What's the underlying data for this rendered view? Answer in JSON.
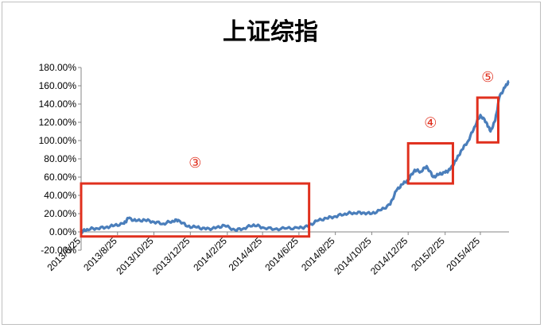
{
  "chart_data": {
    "type": "line",
    "title": "上证综指",
    "xlabel": "",
    "ylabel": "",
    "ylim": [
      -0.2,
      1.8
    ],
    "y_ticks": [
      "-20.00%",
      "0.00%",
      "20.00%",
      "40.00%",
      "60.00%",
      "80.00%",
      "100.00%",
      "120.00%",
      "140.00%",
      "160.00%",
      "180.00%"
    ],
    "y_tick_values": [
      -0.2,
      0,
      0.2,
      0.4,
      0.6,
      0.8,
      1.0,
      1.2,
      1.4,
      1.6,
      1.8
    ],
    "x_ticks": [
      "2013/6/25",
      "2013/8/25",
      "2013/10/25",
      "2013/12/25",
      "2014/2/25",
      "2014/4/25",
      "2014/6/25",
      "2014/8/25",
      "2014/10/25",
      "2014/12/25",
      "2015/2/25",
      "2015/4/25"
    ],
    "xlim": [
      "2013-06-25",
      "2015-06-12"
    ],
    "grid": false,
    "series": [
      {
        "color": "#4a7ebb",
        "points": [
          [
            "2013-06-25",
            0.0
          ],
          [
            "2013-07-05",
            0.03
          ],
          [
            "2013-07-20",
            0.04
          ],
          [
            "2013-08-05",
            0.05
          ],
          [
            "2013-08-20",
            0.07
          ],
          [
            "2013-09-05",
            0.09
          ],
          [
            "2013-09-12",
            0.15
          ],
          [
            "2013-09-25",
            0.12
          ],
          [
            "2013-10-10",
            0.13
          ],
          [
            "2013-10-25",
            0.11
          ],
          [
            "2013-11-10",
            0.09
          ],
          [
            "2013-11-25",
            0.12
          ],
          [
            "2013-12-05",
            0.13
          ],
          [
            "2013-12-20",
            0.06
          ],
          [
            "2014-01-05",
            0.05
          ],
          [
            "2014-01-20",
            0.03
          ],
          [
            "2014-02-05",
            0.04
          ],
          [
            "2014-02-20",
            0.07
          ],
          [
            "2014-03-10",
            0.02
          ],
          [
            "2014-03-25",
            0.04
          ],
          [
            "2014-04-10",
            0.08
          ],
          [
            "2014-04-25",
            0.05
          ],
          [
            "2014-05-15",
            0.03
          ],
          [
            "2014-06-05",
            0.04
          ],
          [
            "2014-06-25",
            0.04
          ],
          [
            "2014-07-10",
            0.06
          ],
          [
            "2014-07-25",
            0.12
          ],
          [
            "2014-08-10",
            0.15
          ],
          [
            "2014-08-25",
            0.17
          ],
          [
            "2014-09-10",
            0.2
          ],
          [
            "2014-09-25",
            0.21
          ],
          [
            "2014-10-10",
            0.21
          ],
          [
            "2014-10-25",
            0.2
          ],
          [
            "2014-11-10",
            0.24
          ],
          [
            "2014-11-25",
            0.3
          ],
          [
            "2014-12-05",
            0.45
          ],
          [
            "2014-12-15",
            0.52
          ],
          [
            "2014-12-25",
            0.57
          ],
          [
            "2015-01-05",
            0.68
          ],
          [
            "2015-01-15",
            0.66
          ],
          [
            "2015-01-25",
            0.72
          ],
          [
            "2015-02-05",
            0.6
          ],
          [
            "2015-02-15",
            0.63
          ],
          [
            "2015-02-25",
            0.65
          ],
          [
            "2015-03-05",
            0.68
          ],
          [
            "2015-03-15",
            0.78
          ],
          [
            "2015-03-25",
            0.9
          ],
          [
            "2015-04-05",
            1.0
          ],
          [
            "2015-04-15",
            1.15
          ],
          [
            "2015-04-25",
            1.28
          ],
          [
            "2015-05-05",
            1.2
          ],
          [
            "2015-05-12",
            1.1
          ],
          [
            "2015-05-20",
            1.22
          ],
          [
            "2015-05-27",
            1.48
          ],
          [
            "2015-06-05",
            1.58
          ],
          [
            "2015-06-12",
            1.65
          ]
        ]
      }
    ],
    "annotations": [
      {
        "label": "③",
        "color": "#e0301e",
        "box_from": "2013-06-25",
        "box_to": "2014-07-12",
        "box_y": [
          -0.05,
          0.53
        ]
      },
      {
        "label": "④",
        "color": "#e0301e",
        "box_from": "2014-12-25",
        "box_to": "2015-03-10",
        "box_y": [
          0.53,
          0.97
        ]
      },
      {
        "label": "⑤",
        "color": "#e0301e",
        "box_from": "2015-04-20",
        "box_to": "2015-05-25",
        "box_y": [
          0.98,
          1.47
        ]
      }
    ]
  }
}
